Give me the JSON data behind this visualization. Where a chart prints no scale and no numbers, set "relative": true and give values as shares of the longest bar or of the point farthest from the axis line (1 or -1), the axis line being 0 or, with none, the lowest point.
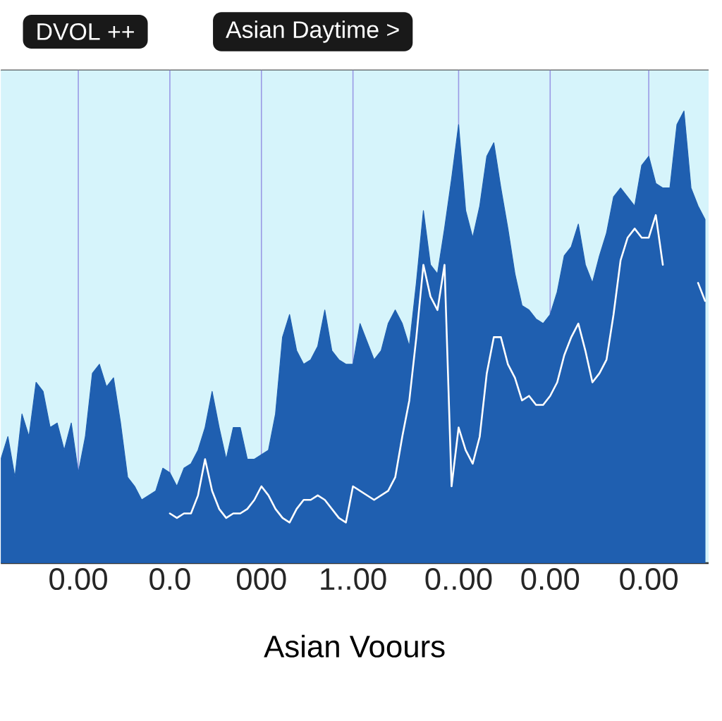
{
  "chart_data": {
    "type": "area",
    "relative": true,
    "xlabel": "Asian Voours",
    "annotations": [
      "DVOL ++",
      "Asian Daytime >"
    ],
    "categories": [
      null,
      null,
      null,
      null,
      null,
      null,
      null,
      null,
      null,
      null,
      null,
      "0.00",
      null,
      null,
      null,
      null,
      null,
      null,
      null,
      null,
      null,
      null,
      null,
      null,
      "0.0",
      null,
      null,
      null,
      null,
      null,
      null,
      null,
      null,
      null,
      null,
      null,
      null,
      "000",
      null,
      null,
      null,
      null,
      null,
      null,
      null,
      null,
      null,
      null,
      null,
      null,
      "1..00",
      null,
      null,
      null,
      null,
      null,
      null,
      null,
      null,
      null,
      null,
      null,
      null,
      null,
      null,
      "0..00",
      null,
      null,
      null,
      null,
      null,
      null,
      null,
      null,
      null,
      null,
      null,
      null,
      "0.00",
      null,
      null,
      null,
      null,
      null,
      null,
      null,
      null,
      null,
      null,
      null,
      null,
      null,
      "0.00",
      null,
      null,
      null,
      null,
      null,
      null,
      null,
      null
    ],
    "grid": "x",
    "series": [
      {
        "color": "#1f5fb0",
        "values": [
          0.23,
          0.28,
          0.19,
          0.33,
          0.28,
          0.4,
          0.38,
          0.3,
          0.31,
          0.25,
          0.31,
          0.2,
          0.28,
          0.42,
          0.44,
          0.39,
          0.41,
          0.31,
          0.19,
          0.17,
          0.14,
          0.15,
          0.16,
          0.21,
          0.2,
          0.17,
          0.21,
          0.22,
          0.25,
          0.3,
          0.38,
          0.3,
          0.23,
          0.3,
          0.3,
          0.23,
          0.23,
          0.24,
          0.25,
          0.33,
          0.5,
          0.55,
          0.47,
          0.44,
          0.45,
          0.48,
          0.56,
          0.47,
          0.45,
          0.44,
          0.44,
          0.53,
          0.49,
          0.45,
          0.47,
          0.53,
          0.56,
          0.53,
          0.48,
          0.62,
          0.78,
          0.66,
          0.64,
          0.74,
          0.85,
          0.97,
          0.78,
          0.72,
          0.79,
          0.9,
          0.93,
          0.83,
          0.74,
          0.64,
          0.57,
          0.56,
          0.54,
          0.53,
          0.55,
          0.6,
          0.68,
          0.7,
          0.75,
          0.66,
          0.62,
          0.68,
          0.73,
          0.81,
          0.83,
          0.81,
          0.79,
          0.88,
          0.9,
          0.84,
          0.83,
          0.83,
          0.97,
          1.0,
          0.83,
          0.79,
          0.76
        ]
      },
      {
        "type": "line",
        "color": "#ffffff",
        "values": [
          null,
          null,
          null,
          null,
          null,
          null,
          null,
          null,
          null,
          null,
          null,
          null,
          null,
          null,
          null,
          null,
          null,
          null,
          null,
          null,
          null,
          null,
          null,
          null,
          0.11,
          0.1,
          0.11,
          0.11,
          0.15,
          0.23,
          0.16,
          0.12,
          0.1,
          0.11,
          0.11,
          0.12,
          0.14,
          0.17,
          0.15,
          0.12,
          0.1,
          0.09,
          0.12,
          0.14,
          0.14,
          0.15,
          0.14,
          0.12,
          0.1,
          0.09,
          0.17,
          0.16,
          0.15,
          0.14,
          0.15,
          0.16,
          0.19,
          0.28,
          0.36,
          0.5,
          0.66,
          0.59,
          0.56,
          0.66,
          0.17,
          0.3,
          0.25,
          0.22,
          0.28,
          0.42,
          0.5,
          0.5,
          0.44,
          0.41,
          0.36,
          0.37,
          0.35,
          0.35,
          0.37,
          0.4,
          0.46,
          0.5,
          0.53,
          0.47,
          0.4,
          0.42,
          0.45,
          0.55,
          0.67,
          0.72,
          0.74,
          0.72,
          0.72,
          0.77,
          0.66,
          null,
          null,
          null,
          null,
          0.62,
          0.58
        ]
      }
    ]
  }
}
